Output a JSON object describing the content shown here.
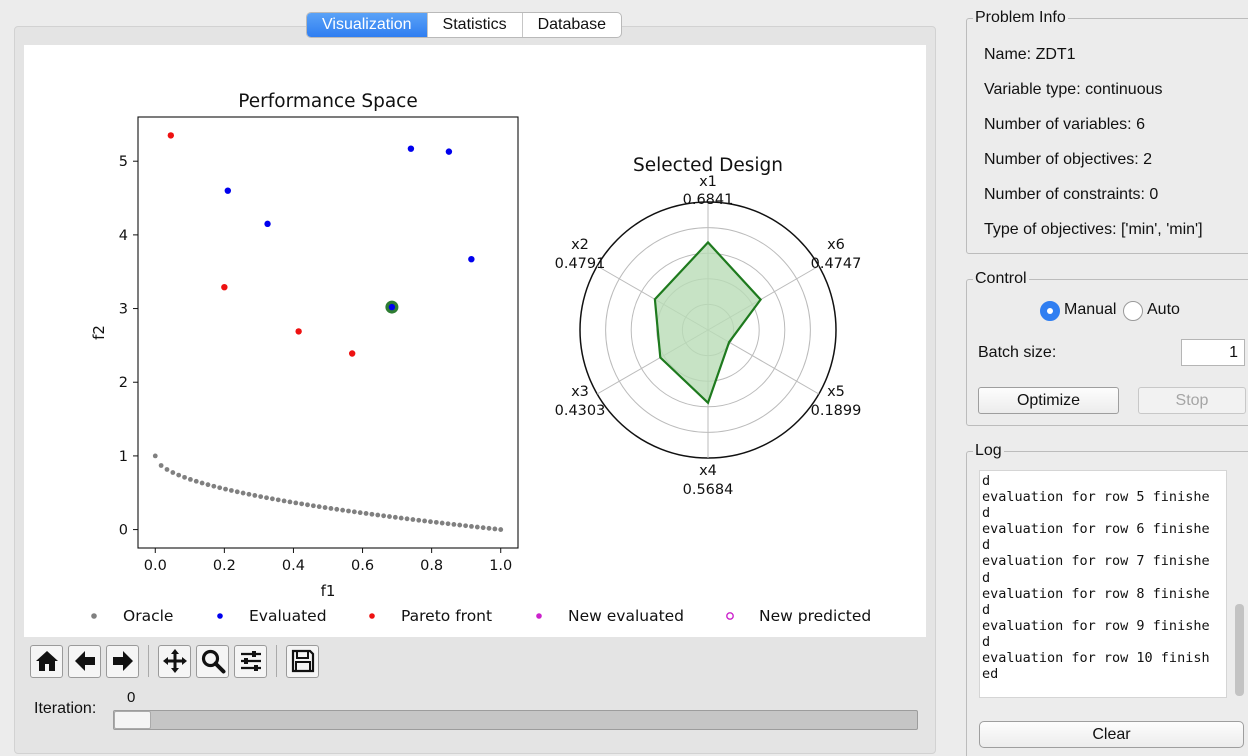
{
  "tabs": [
    {
      "label": "Visualization",
      "active": true
    },
    {
      "label": "Statistics",
      "active": false
    },
    {
      "label": "Database",
      "active": false
    }
  ],
  "chart_data": [
    {
      "type": "scatter",
      "title": "Performance Space",
      "xlabel": "f1",
      "ylabel": "f2",
      "xlim": [
        -0.05,
        1.05
      ],
      "ylim": [
        -0.25,
        5.6
      ],
      "xticks": [
        "0.0",
        "0.2",
        "0.4",
        "0.6",
        "0.8",
        "1.0"
      ],
      "yticks": [
        "0",
        "1",
        "2",
        "3",
        "4",
        "5"
      ],
      "grid": false,
      "legend_position": "bottom",
      "series": [
        {
          "name": "Oracle",
          "color": "#808080",
          "curve": "f2 = 1 - sqrt(f1)",
          "x_range": [
            0,
            1
          ],
          "points": 60
        },
        {
          "name": "Evaluated",
          "color": "#0000ee",
          "x": [
            0.21,
            0.325,
            0.74,
            0.85,
            0.915
          ],
          "y": [
            4.6,
            4.15,
            5.17,
            5.13,
            3.67
          ]
        },
        {
          "name": "Pareto front",
          "color": "#ee1111",
          "x": [
            0.045,
            0.2,
            0.415,
            0.57
          ],
          "y": [
            5.35,
            3.29,
            2.69,
            2.39
          ]
        },
        {
          "name": "New evaluated",
          "color": "#cc22cc",
          "x": [],
          "y": []
        },
        {
          "name": "New predicted",
          "color": "#cc22cc",
          "hollow": true,
          "x": [],
          "y": []
        }
      ],
      "selected_point": {
        "x": 0.685,
        "y": 3.02,
        "color": "#2e7d32"
      }
    },
    {
      "type": "radar",
      "title": "Selected Design",
      "axes": [
        {
          "label": "x1",
          "value": "0.6841",
          "v": 0.6841
        },
        {
          "label": "x6",
          "value": "0.4747",
          "v": 0.4747
        },
        {
          "label": "x5",
          "value": "0.1899",
          "v": 0.1899
        },
        {
          "label": "x4",
          "value": "0.5684",
          "v": 0.5684
        },
        {
          "label": "x3",
          "value": "0.4303",
          "v": 0.4303
        },
        {
          "label": "x2",
          "value": "0.4791",
          "v": 0.4791
        }
      ],
      "range": [
        0,
        1
      ],
      "rings": 4,
      "line_color": "#1e7a1e",
      "fill_color": "#b9dcb6"
    }
  ],
  "toolbar": {
    "icons": [
      "home-icon",
      "back-arrow-icon",
      "forward-arrow-icon",
      "pan-icon",
      "zoom-icon",
      "configure-subplots-icon",
      "save-icon"
    ]
  },
  "iteration": {
    "label": "Iteration:",
    "value": "0",
    "fraction": 0
  },
  "problem_info": {
    "title": "Problem Info",
    "lines": [
      "Name: ZDT1",
      "Variable type: continuous",
      "Number of variables: 6",
      "Number of objectives: 2",
      "Number of constraints: 0",
      "Type of objectives: ['min', 'min']"
    ]
  },
  "control": {
    "title": "Control",
    "manual_label": "Manual",
    "auto_label": "Auto",
    "mode": "manual",
    "batch_label": "Batch size:",
    "batch_value": "1",
    "optimize_label": "Optimize",
    "stop_label": "Stop"
  },
  "log": {
    "title": "Log",
    "text": "d\nevaluation for row 5 finishe\nd\nevaluation for row 6 finishe\nd\nevaluation for row 7 finishe\nd\nevaluation for row 8 finishe\nd\nevaluation for row 9 finishe\nd\nevaluation for row 10 finish\ned",
    "clear_label": "Clear"
  }
}
